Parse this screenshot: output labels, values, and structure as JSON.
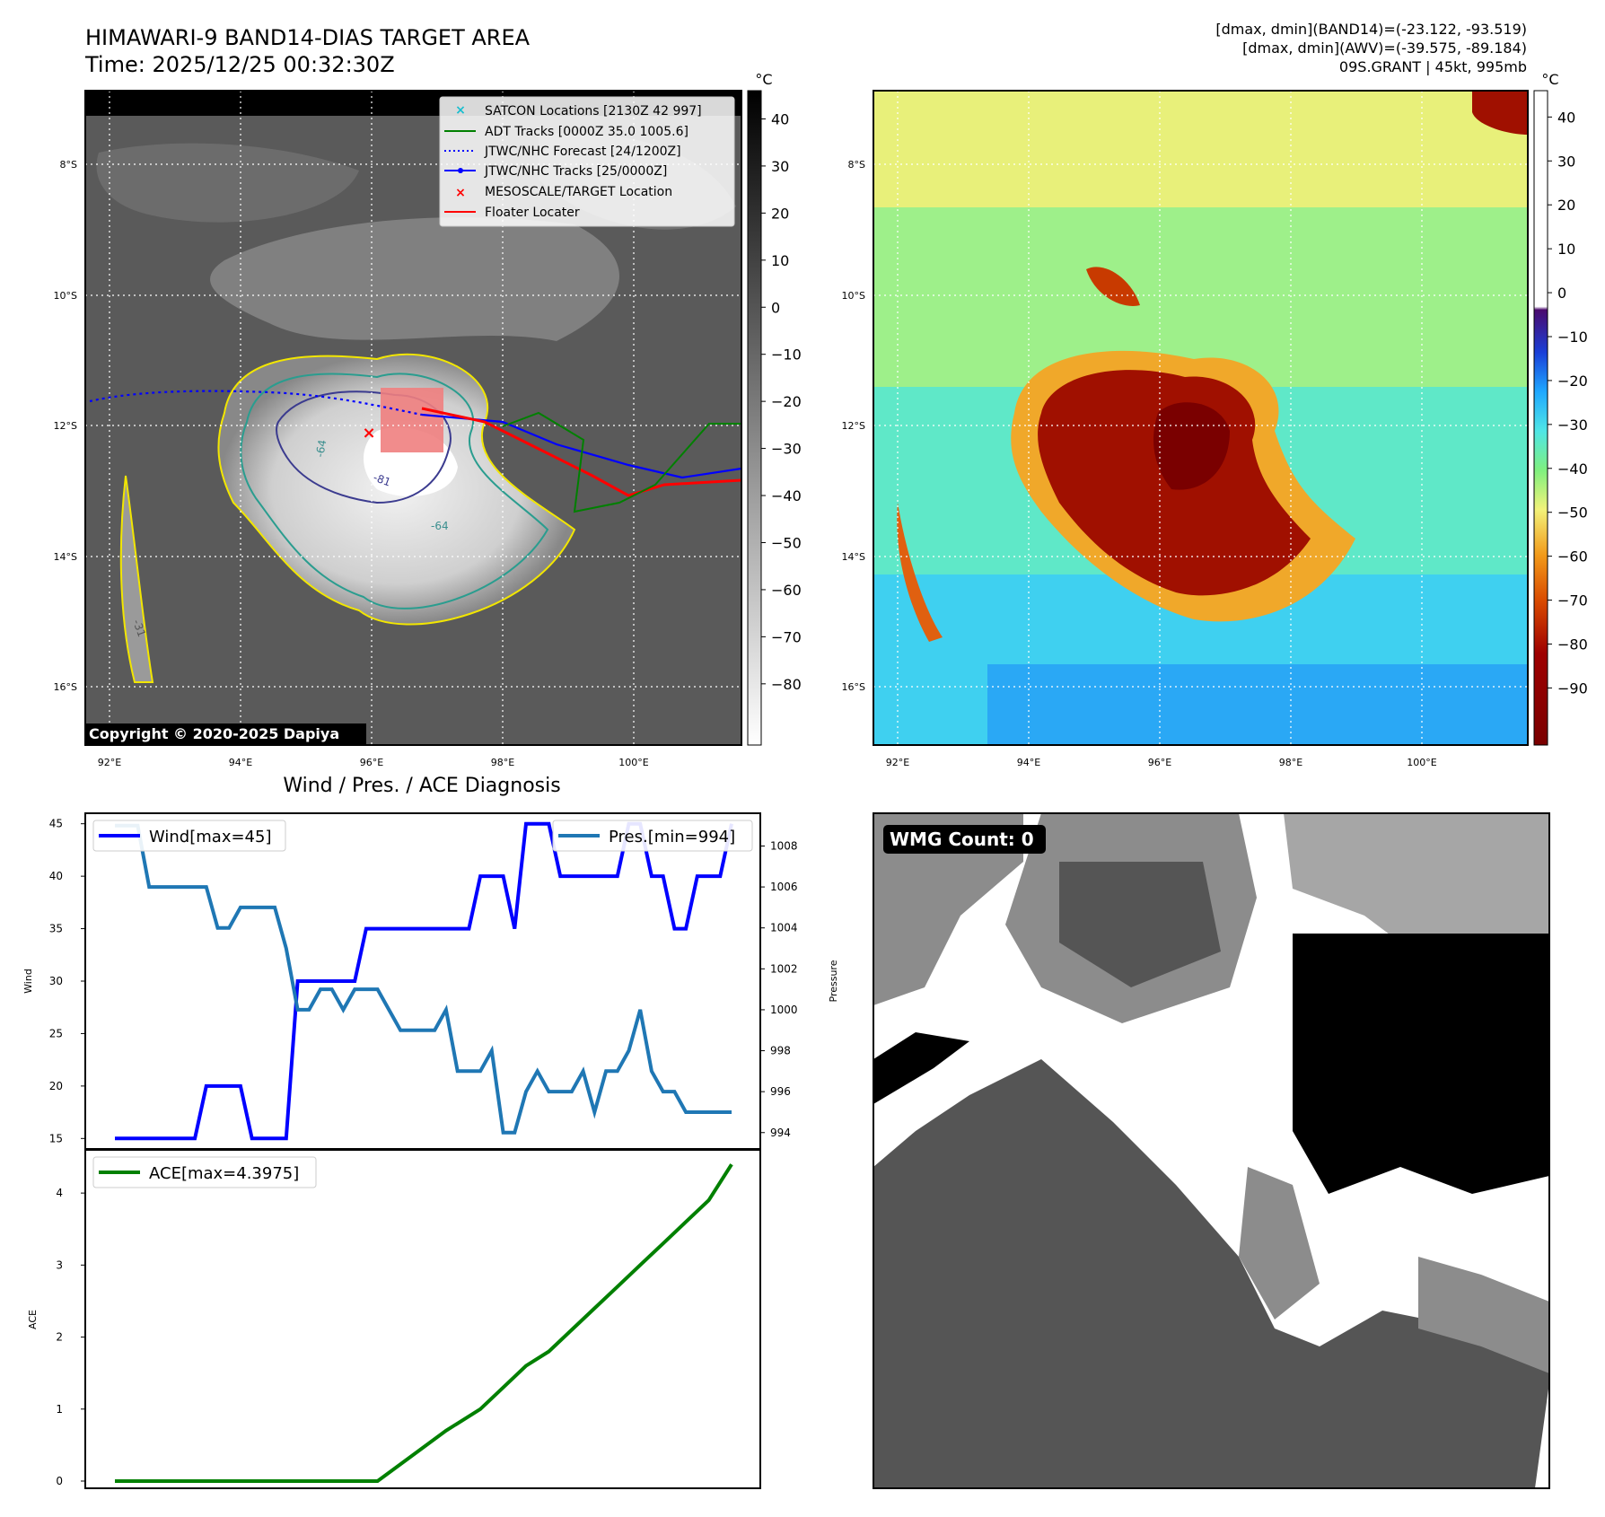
{
  "header": {
    "title": "HIMAWARI-9 BAND14-DIAS TARGET AREA",
    "time": "Time: 2025/12/25 00:32:30Z",
    "info_band14": "[dmax, dmin](BAND14)=(-23.122, -93.519)",
    "info_awv": "[dmax, dmin](AWV)=(-39.575, -89.184)",
    "info_storm": "09S.GRANT | 45kt, 995mb"
  },
  "map": {
    "lat_labels": [
      "8°S",
      "10°S",
      "12°S",
      "14°S",
      "16°S"
    ],
    "lon_labels": [
      "92°E",
      "94°E",
      "96°E",
      "98°E",
      "100°E"
    ],
    "copyright": "Copyright © 2020-2025 Dapiya",
    "legend": [
      {
        "label": "SATCON Locations [2130Z 42 997]",
        "symbol": "x",
        "color": "#17becf"
      },
      {
        "label": "ADT Tracks [0000Z 35.0 1005.6]",
        "symbol": "line",
        "color": "#008000"
      },
      {
        "label": "JTWC/NHC Forecast [24/1200Z]",
        "symbol": "dotted",
        "color": "#0000ff"
      },
      {
        "label": "JTWC/NHC Tracks [25/0000Z]",
        "symbol": "line-dot",
        "color": "#0000ff"
      },
      {
        "label": "MESOSCALE/TARGET Location",
        "symbol": "x",
        "color": "#ff0000"
      },
      {
        "label": "Floater Locater",
        "symbol": "line",
        "color": "#ff0000"
      }
    ],
    "contour_labels": [
      "-64",
      "-81",
      "-64",
      "-31"
    ]
  },
  "colorbar_gray": {
    "unit": "°C",
    "ticks": [
      "40",
      "30",
      "20",
      "10",
      "0",
      "−10",
      "−20",
      "−30",
      "−40",
      "−50",
      "−60",
      "−70",
      "−80"
    ]
  },
  "colorbar_color": {
    "unit": "°C",
    "ticks": [
      "40",
      "30",
      "20",
      "10",
      "0",
      "−10",
      "−20",
      "−30",
      "−40",
      "−50",
      "−60",
      "−70",
      "−80",
      "−90"
    ]
  },
  "wmg": {
    "label": "WMG Count: 0"
  },
  "chart_data": [
    {
      "type": "line",
      "title": "Wind / Pres. / ACE Diagnosis",
      "ylabel": "Wind",
      "ylabel_right": "Pressure",
      "ylim": [
        14,
        46
      ],
      "ylim_right": [
        993.2,
        1009.6
      ],
      "yticks": [
        "15",
        "20",
        "25",
        "30",
        "35",
        "40",
        "45"
      ],
      "yticks_right": [
        "994",
        "996",
        "998",
        "1000",
        "1002",
        "1004",
        "1006",
        "1008"
      ],
      "series": [
        {
          "name": "Wind[max=45]",
          "color": "#0000ff",
          "x": [
            0,
            1,
            2,
            3,
            4,
            5,
            6,
            7,
            8,
            9,
            10,
            11,
            12,
            13,
            14,
            15,
            16,
            17,
            18,
            19,
            20,
            21,
            22,
            23,
            24,
            25,
            26,
            27,
            28,
            29,
            30,
            31,
            32,
            33,
            34,
            35,
            36,
            37,
            38,
            39,
            40,
            41,
            42,
            43,
            44,
            45,
            46,
            47,
            48,
            49,
            50,
            51,
            52,
            53,
            54
          ],
          "values": [
            15,
            15,
            15,
            15,
            15,
            15,
            15,
            15,
            20,
            20,
            20,
            20,
            15,
            15,
            15,
            15,
            30,
            30,
            30,
            30,
            30,
            30,
            35,
            35,
            35,
            35,
            35,
            35,
            35,
            35,
            35,
            35,
            40,
            40,
            40,
            35,
            45,
            45,
            45,
            40,
            40,
            40,
            40,
            40,
            40,
            45,
            45,
            40,
            40,
            35,
            35,
            40,
            40,
            40,
            45
          ]
        },
        {
          "name": "Pres.[min=994]",
          "color": "#1f77b4",
          "x": [
            0,
            1,
            2,
            3,
            4,
            5,
            6,
            7,
            8,
            9,
            10,
            11,
            12,
            13,
            14,
            15,
            16,
            17,
            18,
            19,
            20,
            21,
            22,
            23,
            24,
            25,
            26,
            27,
            28,
            29,
            30,
            31,
            32,
            33,
            34,
            35,
            36,
            37,
            38,
            39,
            40,
            41,
            42,
            43,
            44,
            45,
            46,
            47,
            48,
            49,
            50,
            51,
            52,
            53,
            54
          ],
          "values": [
            1009,
            1009,
            1009,
            1006,
            1006,
            1006,
            1006,
            1006,
            1006,
            1004,
            1004,
            1005,
            1005,
            1005,
            1005,
            1003,
            1000,
            1000,
            1001,
            1001,
            1000,
            1001,
            1001,
            1001,
            1000,
            999,
            999,
            999,
            999,
            1000,
            997,
            997,
            997,
            998,
            994,
            994,
            996,
            997,
            996,
            996,
            996,
            997,
            995,
            997,
            997,
            998,
            1000,
            997,
            996,
            996,
            995,
            995,
            995,
            995,
            995
          ]
        }
      ]
    },
    {
      "type": "line",
      "ylabel": "ACE",
      "ylim": [
        -0.1,
        4.6
      ],
      "yticks": [
        "0",
        "1",
        "2",
        "3",
        "4"
      ],
      "series": [
        {
          "name": "ACE[max=4.3975]",
          "color": "#008000",
          "x": [
            0,
            23,
            26,
            29,
            32,
            34,
            36,
            38,
            40,
            42,
            44,
            46,
            48,
            50,
            52,
            54
          ],
          "values": [
            0,
            0,
            0.35,
            0.7,
            1.0,
            1.3,
            1.6,
            1.8,
            2.1,
            2.4,
            2.7,
            3.0,
            3.3,
            3.6,
            3.9,
            4.3975
          ]
        }
      ]
    }
  ]
}
